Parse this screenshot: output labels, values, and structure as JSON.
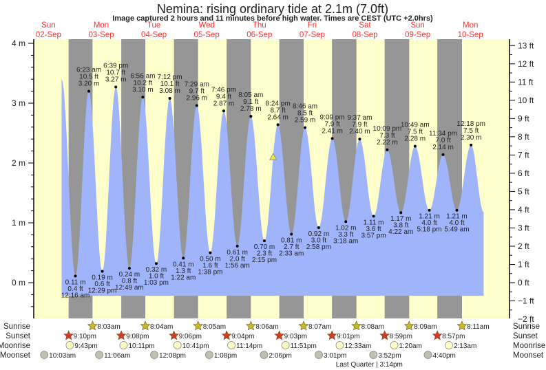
{
  "header": {
    "title": "Nemina: rising  ordinary tide at 2.1m (7.0ft)",
    "subtitle": "Image captured 2 hours and 11 minutes before high water. Times are CEST (UTC +2.0hrs)"
  },
  "colors": {
    "day_background": "#ffffcc",
    "night_background": "#969696",
    "tide_fill": "#a0b4fc",
    "day_label": "#ff3030",
    "sunrise_icon": "#c8b82c",
    "sunset_icon": "#d03a22",
    "moonrise_icon": "#ffffc4",
    "moonset_icon": "#c2beb2",
    "current_marker": "#f0e840"
  },
  "chart_data": {
    "type": "area",
    "title": "Nemina: rising  ordinary tide at 2.1m (7.0ft)",
    "days": [
      {
        "name": "Sun",
        "date": "02-Sep"
      },
      {
        "name": "Mon",
        "date": "03-Sep"
      },
      {
        "name": "Tue",
        "date": "04-Sep"
      },
      {
        "name": "Wed",
        "date": "05-Sep"
      },
      {
        "name": "Thu",
        "date": "06-Sep"
      },
      {
        "name": "Fri",
        "date": "07-Sep"
      },
      {
        "name": "Sat",
        "date": "08-Sep"
      },
      {
        "name": "Sun",
        "date": "09-Sep"
      },
      {
        "name": "Mon",
        "date": "10-Sep"
      }
    ],
    "left_axis": {
      "unit": "m",
      "range": [
        -0.6,
        4.08
      ],
      "ticks": [
        "4 m",
        "3 m",
        "2 m",
        "1 m",
        "0 m"
      ],
      "tick_values": [
        4,
        3,
        2,
        1,
        0
      ]
    },
    "right_axis": {
      "unit": "ft",
      "ticks": [
        "13 ft",
        "12 ft",
        "11 ft",
        "10 ft",
        "9 ft",
        "8 ft",
        "7 ft",
        "6 ft",
        "5 ft",
        "4 ft",
        "3 ft",
        "2 ft",
        "1 ft",
        "0 ft",
        "−1 ft",
        "−2 ft"
      ],
      "tick_values": [
        13,
        12,
        11,
        10,
        9,
        8,
        7,
        6,
        5,
        4,
        3,
        2,
        1,
        0,
        -1,
        -2
      ]
    },
    "series_start": {
      "date": "02-Sep",
      "time": "6:00 pm",
      "m": 3.4
    },
    "series_end": {
      "date": "10-Sep",
      "time": "6:00 pm",
      "m": 1.18
    },
    "extremes": [
      {
        "type": "low",
        "date": "03-Sep",
        "time": "12:16 am",
        "m": 0.11,
        "m_label": "0.11 m",
        "ft_label": "0.4 ft"
      },
      {
        "type": "high",
        "date": "03-Sep",
        "time": "6:23 am",
        "m": 3.2,
        "m_label": "3.20 m",
        "ft_label": "10.5 ft"
      },
      {
        "type": "low",
        "date": "03-Sep",
        "time": "12:29 pm",
        "m": 0.19,
        "m_label": "0.19 m",
        "ft_label": "0.6 ft"
      },
      {
        "type": "high",
        "date": "03-Sep",
        "time": "6:39 pm",
        "m": 3.27,
        "m_label": "3.27 m",
        "ft_label": "10.7 ft"
      },
      {
        "type": "low",
        "date": "04-Sep",
        "time": "12:49 am",
        "m": 0.24,
        "m_label": "0.24 m",
        "ft_label": "0.8 ft"
      },
      {
        "type": "high",
        "date": "04-Sep",
        "time": "6:56 am",
        "m": 3.1,
        "m_label": "3.10 m",
        "ft_label": "10.2 ft"
      },
      {
        "type": "low",
        "date": "04-Sep",
        "time": "1:03 pm",
        "m": 0.32,
        "m_label": "0.32 m",
        "ft_label": "1.0 ft"
      },
      {
        "type": "high",
        "date": "04-Sep",
        "time": "7:12 pm",
        "m": 3.08,
        "m_label": "3.08 m",
        "ft_label": "10.1 ft"
      },
      {
        "type": "low",
        "date": "05-Sep",
        "time": "1:22 am",
        "m": 0.41,
        "m_label": "0.41 m",
        "ft_label": "1.3 ft"
      },
      {
        "type": "high",
        "date": "05-Sep",
        "time": "7:29 am",
        "m": 2.96,
        "m_label": "2.96 m",
        "ft_label": "9.7 ft"
      },
      {
        "type": "low",
        "date": "05-Sep",
        "time": "1:38 pm",
        "m": 0.5,
        "m_label": "0.50 m",
        "ft_label": "1.6 ft"
      },
      {
        "type": "high",
        "date": "05-Sep",
        "time": "7:46 pm",
        "m": 2.87,
        "m_label": "2.87 m",
        "ft_label": "9.4 ft"
      },
      {
        "type": "low",
        "date": "06-Sep",
        "time": "1:56 am",
        "m": 0.61,
        "m_label": "0.61 m",
        "ft_label": "2.0 ft"
      },
      {
        "type": "high",
        "date": "06-Sep",
        "time": "8:05 am",
        "m": 2.78,
        "m_label": "2.78 m",
        "ft_label": "9.1 ft"
      },
      {
        "type": "low",
        "date": "06-Sep",
        "time": "2:15 pm",
        "m": 0.7,
        "m_label": "0.70 m",
        "ft_label": "2.3 ft"
      },
      {
        "type": "high",
        "date": "06-Sep",
        "time": "8:24 pm",
        "m": 2.64,
        "m_label": "2.64 m",
        "ft_label": "8.7 ft"
      },
      {
        "type": "low",
        "date": "07-Sep",
        "time": "2:33 am",
        "m": 0.81,
        "m_label": "0.81 m",
        "ft_label": "2.7 ft"
      },
      {
        "type": "high",
        "date": "07-Sep",
        "time": "8:46 am",
        "m": 2.59,
        "m_label": "2.59 m",
        "ft_label": "8.5 ft"
      },
      {
        "type": "low",
        "date": "07-Sep",
        "time": "2:58 pm",
        "m": 0.92,
        "m_label": "0.92 m",
        "ft_label": "3.0 ft"
      },
      {
        "type": "high",
        "date": "07-Sep",
        "time": "9:09 pm",
        "m": 2.41,
        "m_label": "2.41 m",
        "ft_label": "7.9 ft"
      },
      {
        "type": "low",
        "date": "08-Sep",
        "time": "3:18 am",
        "m": 1.02,
        "m_label": "1.02 m",
        "ft_label": "3.3 ft"
      },
      {
        "type": "high",
        "date": "08-Sep",
        "time": "9:37 am",
        "m": 2.4,
        "m_label": "2.40 m",
        "ft_label": "7.9 ft"
      },
      {
        "type": "low",
        "date": "08-Sep",
        "time": "3:57 pm",
        "m": 1.11,
        "m_label": "1.11 m",
        "ft_label": "3.6 ft"
      },
      {
        "type": "high",
        "date": "08-Sep",
        "time": "10:09 pm",
        "m": 2.22,
        "m_label": "2.22 m",
        "ft_label": "7.3 ft"
      },
      {
        "type": "low",
        "date": "09-Sep",
        "time": "4:22 am",
        "m": 1.17,
        "m_label": "1.17 m",
        "ft_label": "3.8 ft"
      },
      {
        "type": "high",
        "date": "09-Sep",
        "time": "10:49 am",
        "m": 2.28,
        "m_label": "2.28 m",
        "ft_label": "7.5 ft"
      },
      {
        "type": "low",
        "date": "09-Sep",
        "time": "5:18 pm",
        "m": 1.21,
        "m_label": "1.21 m",
        "ft_label": "4.0 ft"
      },
      {
        "type": "high",
        "date": "09-Sep",
        "time": "11:34 pm",
        "m": 2.14,
        "m_label": "2.14 m",
        "ft_label": "7.0 ft"
      },
      {
        "type": "low",
        "date": "10-Sep",
        "time": "5:49 am",
        "m": 1.21,
        "m_label": "1.21 m",
        "ft_label": "4.0 ft"
      },
      {
        "type": "high",
        "date": "10-Sep",
        "time": "12:18 pm",
        "m": 2.3,
        "m_label": "2.30 m",
        "ft_label": "7.5 ft"
      }
    ],
    "current": {
      "date": "06-Sep",
      "time": "6:13 pm",
      "m": 2.1,
      "ft": 7.0
    },
    "rows": {
      "sunrise": {
        "label": "Sunrise",
        "events": [
          {
            "date": "03-Sep",
            "time": "8:03am"
          },
          {
            "date": "04-Sep",
            "time": "8:04am"
          },
          {
            "date": "05-Sep",
            "time": "8:05am"
          },
          {
            "date": "06-Sep",
            "time": "8:06am"
          },
          {
            "date": "07-Sep",
            "time": "8:07am"
          },
          {
            "date": "08-Sep",
            "time": "8:08am"
          },
          {
            "date": "09-Sep",
            "time": "8:09am"
          },
          {
            "date": "10-Sep",
            "time": "8:11am"
          }
        ]
      },
      "sunset": {
        "label": "Sunset",
        "events": [
          {
            "date": "02-Sep",
            "time": "9:10pm"
          },
          {
            "date": "03-Sep",
            "time": "9:08pm"
          },
          {
            "date": "04-Sep",
            "time": "9:06pm"
          },
          {
            "date": "05-Sep",
            "time": "9:04pm"
          },
          {
            "date": "06-Sep",
            "time": "9:03pm"
          },
          {
            "date": "07-Sep",
            "time": "9:01pm"
          },
          {
            "date": "08-Sep",
            "time": "8:59pm"
          },
          {
            "date": "09-Sep",
            "time": "8:57pm"
          }
        ]
      },
      "moonrise": {
        "label": "Moonrise",
        "events": [
          {
            "date": "02-Sep",
            "time": "9:43pm"
          },
          {
            "date": "03-Sep",
            "time": "10:11pm"
          },
          {
            "date": "04-Sep",
            "time": "10:41pm"
          },
          {
            "date": "05-Sep",
            "time": "11:14pm"
          },
          {
            "date": "06-Sep",
            "time": "11:51pm"
          },
          {
            "date": "08-Sep",
            "time": "12:33am"
          },
          {
            "date": "09-Sep",
            "time": "1:20am"
          },
          {
            "date": "10-Sep",
            "time": "2:13am"
          }
        ]
      },
      "moonset": {
        "label": "Moonset",
        "events": [
          {
            "date": "02-Sep",
            "time": "10:03am"
          },
          {
            "date": "03-Sep",
            "time": "11:06am"
          },
          {
            "date": "04-Sep",
            "time": "12:08pm"
          },
          {
            "date": "05-Sep",
            "time": "1:08pm"
          },
          {
            "date": "06-Sep",
            "time": "2:06pm"
          },
          {
            "date": "07-Sep",
            "time": "3:01pm"
          },
          {
            "date": "08-Sep",
            "time": "3:52pm"
          },
          {
            "date": "09-Sep",
            "time": "4:40pm"
          }
        ]
      }
    },
    "moon_phase": {
      "date": "08-Sep",
      "time": "3:14pm",
      "text": "Last Quarter | 3:14pm"
    }
  }
}
